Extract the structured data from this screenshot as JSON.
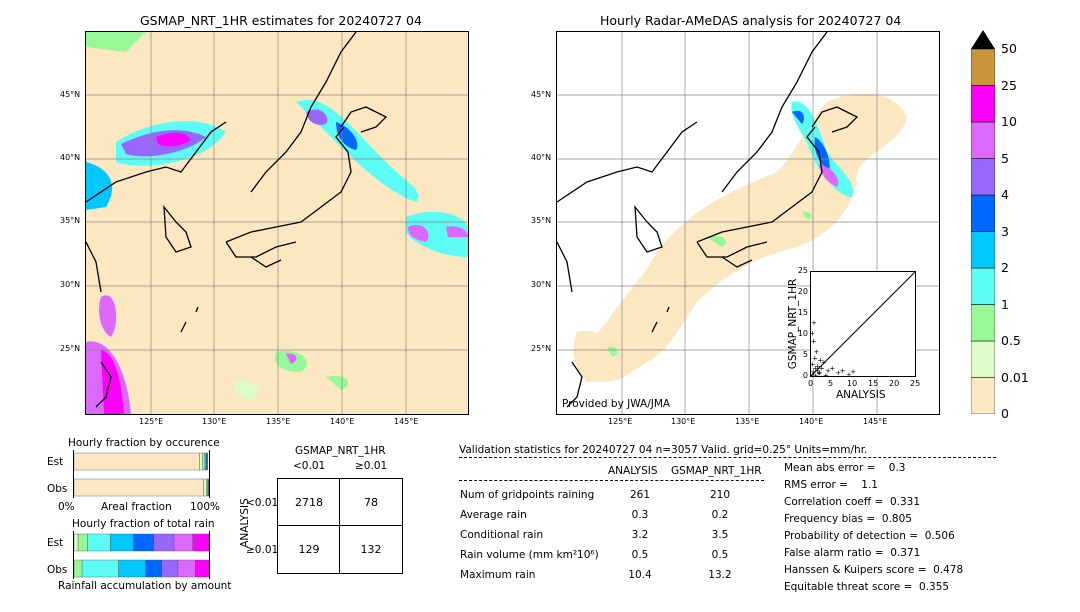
{
  "left_map": {
    "title": "GSMAP_NRT_1HR estimates for 20240727 04",
    "lat_labels": [
      "45°N",
      "40°N",
      "35°N",
      "30°N",
      "25°N"
    ],
    "lon_labels": [
      "125°E",
      "130°E",
      "135°E",
      "140°E",
      "145°E"
    ]
  },
  "right_map": {
    "title": "Hourly Radar-AMeDAS analysis for 20240727 04",
    "lat_labels": [
      "45°N",
      "40°N",
      "35°N",
      "30°N",
      "25°N"
    ],
    "lon_labels": [
      "125°E",
      "130°E",
      "135°E",
      "140°E",
      "145°E"
    ],
    "credit": "Provided by JWA/JMA"
  },
  "scatter": {
    "ylabel": "GSMAP_NRT_1HR",
    "xlabel": "ANALYSIS",
    "ticks": [
      "0",
      "5",
      "10",
      "15",
      "20",
      "25"
    ]
  },
  "colorbar": {
    "labels": [
      "0",
      "0.01",
      "0.5",
      "1",
      "2",
      "3",
      "4",
      "5",
      "10",
      "25",
      "50"
    ],
    "colors": [
      "#fce8c0",
      "#ddfcc8",
      "#98f898",
      "#5cfcf4",
      "#00c8fc",
      "#0068fc",
      "#9868fc",
      "#dc68fc",
      "#fc00fc",
      "#c8963c"
    ]
  },
  "occurrence": {
    "title": "Hourly fraction by occurence",
    "est_label": "Est",
    "obs_label": "Obs",
    "axis_left": "0%",
    "axis_mid": "Areal fraction",
    "axis_right": "100%"
  },
  "amount": {
    "title": "Hourly fraction of total rain",
    "est_label": "Est",
    "obs_label": "Obs",
    "footer": "Rainfall accumulation by amount"
  },
  "contingency": {
    "col_header": "GSMAP_NRT_1HR",
    "col_lt": "<0.01",
    "col_ge": "≥0.01",
    "row_header": "ANALYSIS",
    "row_lt": "<0.01",
    "row_ge": "≥0.01",
    "a": "2718",
    "b": "78",
    "c": "129",
    "d": "132"
  },
  "validation": {
    "header": "Validation statistics for 20240727 04  n=3057 Valid. grid=0.25° Units=mm/hr.",
    "col_analysis": "ANALYSIS",
    "col_gsmap": "GSMAP_NRT_1HR",
    "rows": [
      {
        "label": "Num of gridpoints raining",
        "analysis": "261",
        "gsmap": "210"
      },
      {
        "label": "Average rain",
        "analysis": "0.3",
        "gsmap": "0.2"
      },
      {
        "label": "Conditional rain",
        "analysis": "3.2",
        "gsmap": "3.5"
      },
      {
        "label": "Rain volume (mm km²10⁶)",
        "analysis": "0.5",
        "gsmap": "0.5"
      },
      {
        "label": "Maximum rain",
        "analysis": "10.4",
        "gsmap": "13.2"
      }
    ],
    "scores": [
      "Mean abs error =    0.3",
      "RMS error =    1.1",
      "Correlation coeff =  0.331",
      "Frequency bias =  0.805",
      "Probability of detection =  0.506",
      "False alarm ratio =  0.371",
      "Hanssen & Kuipers score =  0.478",
      "Equitable threat score =  0.355"
    ]
  },
  "chart_data": [
    {
      "type": "scatter",
      "xlabel": "ANALYSIS",
      "ylabel": "GSMAP_NRT_1HR",
      "xlim": [
        0,
        25
      ],
      "ylim": [
        0,
        25
      ],
      "points": [
        [
          0.2,
          0.5
        ],
        [
          0.5,
          1.2
        ],
        [
          1.0,
          0.3
        ],
        [
          1.5,
          2.5
        ],
        [
          2.0,
          1.0
        ],
        [
          0.3,
          3.0
        ],
        [
          0.8,
          4.5
        ],
        [
          1.2,
          6.0
        ],
        [
          0.5,
          8.5
        ],
        [
          0.2,
          10.5
        ],
        [
          0.6,
          13.0
        ],
        [
          2.5,
          2.0
        ],
        [
          3.0,
          3.5
        ],
        [
          4.0,
          1.5
        ],
        [
          5.0,
          2.0
        ],
        [
          6.5,
          1.0
        ],
        [
          7.5,
          1.5
        ],
        [
          9.0,
          0.5
        ],
        [
          10.0,
          1.2
        ],
        [
          3.5,
          0.4
        ],
        [
          1.8,
          0.8
        ],
        [
          2.2,
          4.0
        ],
        [
          0.9,
          2.0
        ],
        [
          1.4,
          1.5
        ]
      ]
    },
    {
      "type": "bar",
      "title": "Hourly fraction by occurence",
      "categories": [
        "Est",
        "Obs"
      ],
      "series": [
        {
          "values": [
            0.93,
            0.96
          ]
        },
        {
          "values": [
            0.02,
            0.02
          ]
        },
        {
          "values": [
            0.02,
            0.01
          ]
        },
        {
          "values": [
            0.01,
            0.005
          ]
        },
        {
          "values": [
            0.01,
            0.003
          ]
        }
      ]
    },
    {
      "type": "bar",
      "title": "Hourly fraction of total rain",
      "categories": [
        "Est",
        "Obs"
      ],
      "series": [
        {
          "values": [
            0.03,
            0.0
          ]
        },
        {
          "values": [
            0.07,
            0.06
          ]
        },
        {
          "values": [
            0.17,
            0.27
          ]
        },
        {
          "values": [
            0.17,
            0.2
          ]
        },
        {
          "values": [
            0.15,
            0.12
          ]
        },
        {
          "values": [
            0.15,
            0.12
          ]
        },
        {
          "values": [
            0.14,
            0.13
          ]
        },
        {
          "values": [
            0.12,
            0.1
          ]
        }
      ]
    }
  ]
}
